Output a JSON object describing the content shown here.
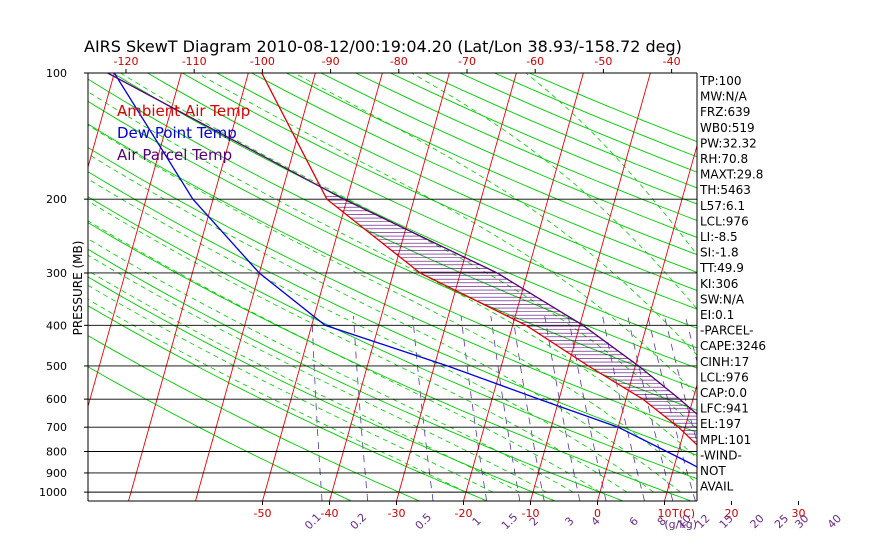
{
  "chart_data": {
    "type": "line",
    "title": "AIRS SkewT Diagram 2010-08-12/00:19:04.20 (Lat/Lon 38.93/-158.72 deg)",
    "ylabel": "PRESSURE (MB)",
    "y_scale": "log",
    "y_reversed": true,
    "ylim": [
      1050,
      100
    ],
    "pressure_ticks": [
      100,
      200,
      300,
      400,
      500,
      600,
      700,
      800,
      900,
      1000
    ],
    "top_temp_ticks": [
      "-120",
      "-110",
      "-100",
      "-90",
      "-80",
      "-70",
      "-60",
      "-50",
      "-40"
    ],
    "bottom_temp_ticks": [
      "-50",
      "-40",
      "-30",
      "-20",
      "-10",
      "0",
      "10",
      "20",
      "30"
    ],
    "bottom_temp_unit": "T(C)",
    "mixing_ratio_ticks": [
      "0.1",
      "0.2",
      "0.5",
      "1",
      "1.5",
      "2",
      "3",
      "4",
      "6",
      "8",
      "10",
      "12",
      "15",
      "20",
      "25",
      "30",
      "40"
    ],
    "mixing_ratio_unit": "(g/kg)",
    "legend": [
      {
        "label": "Ambient Air Temp",
        "color": "#dd0000"
      },
      {
        "label": "Dew Point Temp",
        "color": "#0000dd"
      },
      {
        "label": "Air Parcel Temp",
        "color": "#550077"
      }
    ],
    "series": [
      {
        "name": "Ambient Air Temp",
        "color": "#dd0000",
        "x": [
          23.7,
          20.5,
          16.0,
          9.0,
          2.5,
          -7.0,
          -18.0,
          -36.0,
          -53.0,
          -68.0
        ],
        "y": [
          1013,
          950,
          850,
          700,
          600,
          500,
          400,
          300,
          200,
          100
        ]
      },
      {
        "name": "Dew Point Temp",
        "color": "#0000dd",
        "x": [
          21.5,
          18.5,
          12.0,
          0.0,
          -13.0,
          -28.0,
          -48.0,
          -60.0,
          -73.0,
          -90.0
        ],
        "y": [
          1013,
          950,
          850,
          700,
          600,
          500,
          400,
          300,
          200,
          100
        ]
      },
      {
        "name": "Air Parcel Temp",
        "color": "#550077",
        "x": [
          23.7,
          22.8,
          19.5,
          14.0,
          8.0,
          0.5,
          -9.5,
          -24.5,
          -50.5,
          -91.0
        ],
        "y": [
          1013,
          976,
          850,
          700,
          600,
          500,
          400,
          300,
          200,
          100
        ]
      }
    ],
    "hatch": {
      "from_pressure": 941,
      "to_pressure": 197,
      "color": "#550077"
    },
    "grid": {
      "isobars": true,
      "isotherms": true,
      "dry_adiabats": true,
      "moist_adiabats": true,
      "mixing_ratio_lines": true
    },
    "colors": {
      "isotherm": "#ee0000",
      "isobar": "#000000",
      "dry_adiabat": "#00cc00",
      "moist_adiabat": "#00cc00",
      "mixing_ratio": "#5533aa"
    },
    "indices": [
      "TP:100",
      "MW:N/A",
      "FRZ:639",
      "WB0:519",
      "PW:32.32",
      "RH:70.8",
      "MAXT:29.8",
      "TH:5463",
      "L57:6.1",
      "LCL:976",
      "LI:-8.5",
      "SI:-1.8",
      "TT:49.9",
      "KI:306",
      "SW:N/A",
      "EI:0.1",
      "-PARCEL-",
      "CAPE:3246",
      "CINH:17",
      "LCL:976",
      "CAP:0.0",
      "LFC:941",
      "EL:197",
      "MPL:101",
      "-WIND-",
      "NOT",
      "AVAIL"
    ]
  }
}
